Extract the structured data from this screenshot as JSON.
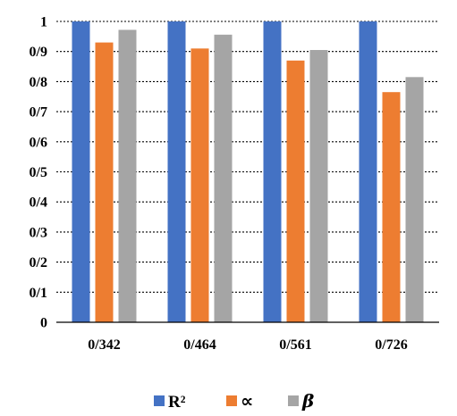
{
  "chart_data": {
    "type": "bar",
    "categories": [
      "0/342",
      "0/464",
      "0/561",
      "0/726"
    ],
    "series": [
      {
        "name": "R²",
        "color": "#4472C4",
        "values": [
          1,
          1,
          1,
          1
        ]
      },
      {
        "name": "∝",
        "color": "#ED7D31",
        "values": [
          0.93,
          0.91,
          0.87,
          0.765
        ]
      },
      {
        "name": "β",
        "color": "#A5A5A5",
        "values": [
          0.972,
          0.956,
          0.905,
          0.815
        ]
      }
    ],
    "yticks": [
      {
        "value": 0,
        "label": "0"
      },
      {
        "value": 0.1,
        "label": "0/1"
      },
      {
        "value": 0.2,
        "label": "0/2"
      },
      {
        "value": 0.3,
        "label": "0/3"
      },
      {
        "value": 0.4,
        "label": "0/4"
      },
      {
        "value": 0.5,
        "label": "0/5"
      },
      {
        "value": 0.6,
        "label": "0/6"
      },
      {
        "value": 0.7,
        "label": "0/7"
      },
      {
        "value": 0.8,
        "label": "0/8"
      },
      {
        "value": 0.9,
        "label": "0/9"
      },
      {
        "value": 1,
        "label": "1"
      }
    ],
    "ylim": [
      0,
      1
    ],
    "grid": true,
    "legend_position": "bottom",
    "title": "",
    "xlabel": "",
    "ylabel": ""
  }
}
